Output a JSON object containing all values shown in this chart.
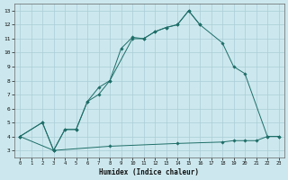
{
  "xlabel": "Humidex (Indice chaleur)",
  "background_color": "#cce8ee",
  "grid_color": "#aacdd6",
  "line_color": "#1e6e68",
  "xlim": [
    -0.5,
    23.5
  ],
  "ylim": [
    2.5,
    13.5
  ],
  "xticks": [
    0,
    1,
    2,
    3,
    4,
    5,
    6,
    7,
    8,
    9,
    10,
    11,
    12,
    13,
    14,
    15,
    16,
    17,
    18,
    19,
    20,
    21,
    22,
    23
  ],
  "yticks": [
    3,
    4,
    5,
    6,
    7,
    8,
    9,
    10,
    11,
    12,
    13
  ],
  "line1_x": [
    0,
    2,
    3,
    4,
    5,
    6,
    7,
    8,
    9,
    10,
    11,
    12,
    13,
    14,
    15,
    16
  ],
  "line1_y": [
    4.0,
    5.0,
    3.0,
    4.5,
    4.5,
    6.5,
    7.0,
    8.0,
    10.3,
    11.1,
    11.0,
    11.5,
    11.8,
    12.0,
    13.0,
    12.0
  ],
  "line2_x": [
    0,
    2,
    3,
    4,
    5,
    6,
    7,
    8,
    10,
    11,
    12,
    13,
    14,
    15,
    16,
    18,
    19,
    20,
    22,
    23
  ],
  "line2_y": [
    4.0,
    5.0,
    3.0,
    4.5,
    4.5,
    6.5,
    7.5,
    8.0,
    11.0,
    11.0,
    11.5,
    11.8,
    12.0,
    13.0,
    12.0,
    10.7,
    9.0,
    8.5,
    4.0,
    4.0
  ],
  "line3_x": [
    0,
    3,
    8,
    14,
    18,
    19,
    20,
    21,
    22,
    23
  ],
  "line3_y": [
    4.0,
    3.0,
    3.3,
    3.5,
    3.6,
    3.7,
    3.7,
    3.7,
    4.0,
    4.0
  ]
}
